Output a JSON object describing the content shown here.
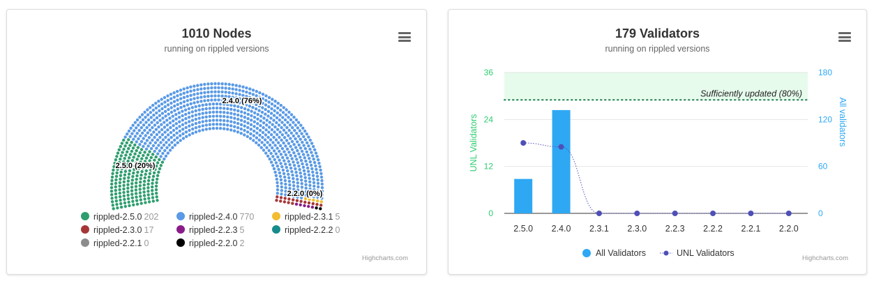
{
  "nodes_card": {
    "title": "1010 Nodes",
    "subtitle": "running on rippled versions",
    "credits": "Highcharts.com",
    "menu_icon": "hamburger-menu-icon"
  },
  "validators_card": {
    "title": "179 Validators",
    "subtitle": "running on rippled versions",
    "credits": "Highcharts.com",
    "menu_icon": "hamburger-menu-icon"
  },
  "chart_data": [
    {
      "type": "item",
      "title": "1010 Nodes",
      "subtitle": "running on rippled versions",
      "series": [
        {
          "name": "rippled-2.5.0",
          "value": 202,
          "color": "#2e9e6e",
          "data_label": "2.5.0 (20%)"
        },
        {
          "name": "rippled-2.4.0",
          "value": 770,
          "color": "#5a9ae6",
          "data_label": "2.4.0 (76%)"
        },
        {
          "name": "rippled-2.3.1",
          "value": 5,
          "color": "#f2bd31",
          "data_label": ""
        },
        {
          "name": "rippled-2.3.0",
          "value": 17,
          "color": "#a63636",
          "data_label": ""
        },
        {
          "name": "rippled-2.2.3",
          "value": 5,
          "color": "#8a1c8a",
          "data_label": ""
        },
        {
          "name": "rippled-2.2.2",
          "value": 0,
          "color": "#168b8b",
          "data_label": ""
        },
        {
          "name": "rippled-2.2.1",
          "value": 0,
          "color": "#8c8c8c",
          "data_label": ""
        },
        {
          "name": "rippled-2.2.0",
          "value": 2,
          "color": "#000000",
          "data_label": "2.2.0 (0%)"
        }
      ],
      "legend_placement": "bottom"
    },
    {
      "type": "bar",
      "title": "179 Validators",
      "subtitle": "running on rippled versions",
      "categories": [
        "2.5.0",
        "2.4.0",
        "2.3.1",
        "2.3.0",
        "2.2.3",
        "2.2.2",
        "2.2.1",
        "2.2.0"
      ],
      "series": [
        {
          "name": "All Validators",
          "type": "bar",
          "axis": "right",
          "color": "#2fa8f4",
          "values": [
            44,
            132,
            0,
            0,
            0,
            0,
            0,
            0
          ]
        },
        {
          "name": "UNL Validators",
          "type": "line",
          "axis": "left",
          "color": "#4f4fb8",
          "values": [
            18,
            17,
            0,
            0,
            0,
            0,
            0,
            0
          ]
        }
      ],
      "ylabel_left": "UNL Validators",
      "ylabel_right": "All validators",
      "ylim_left": [
        0,
        36
      ],
      "ylim_right": [
        0,
        180
      ],
      "yticks_left": [
        "0",
        "12",
        "24",
        "36"
      ],
      "yticks_right": [
        "0",
        "60",
        "120",
        "180"
      ],
      "threshold": {
        "label": "Sufficiently updated (80%)",
        "from": 29,
        "to": 36,
        "color": "#e6fbec"
      },
      "left_axis_color": "#2ecc71",
      "right_axis_color": "#2fa8f4",
      "grid": true,
      "legend_placement": "bottom"
    }
  ]
}
